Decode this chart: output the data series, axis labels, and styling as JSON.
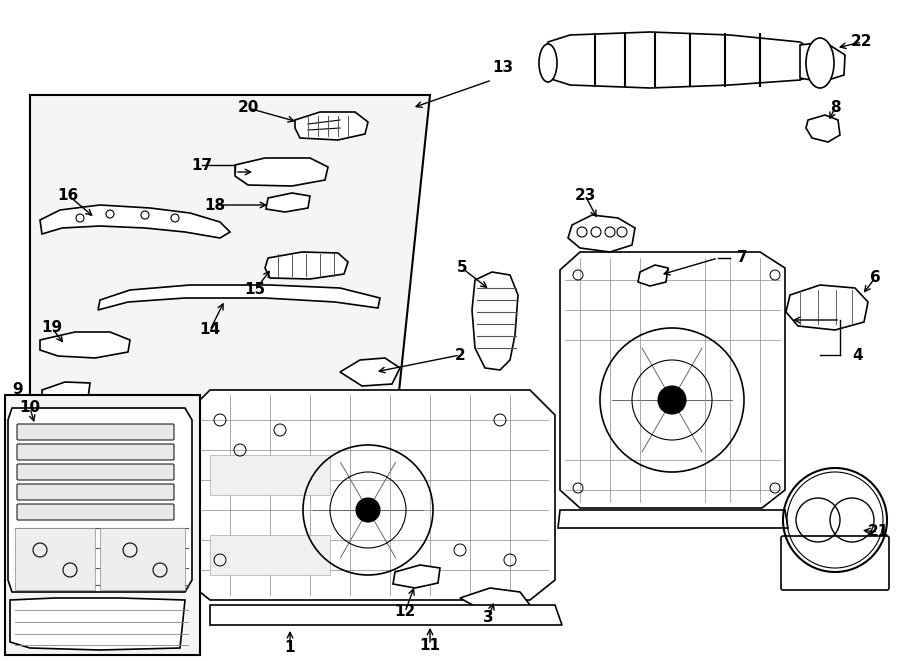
{
  "background": "#ffffff",
  "line_color": "#000000",
  "label_fontsize": 11
}
